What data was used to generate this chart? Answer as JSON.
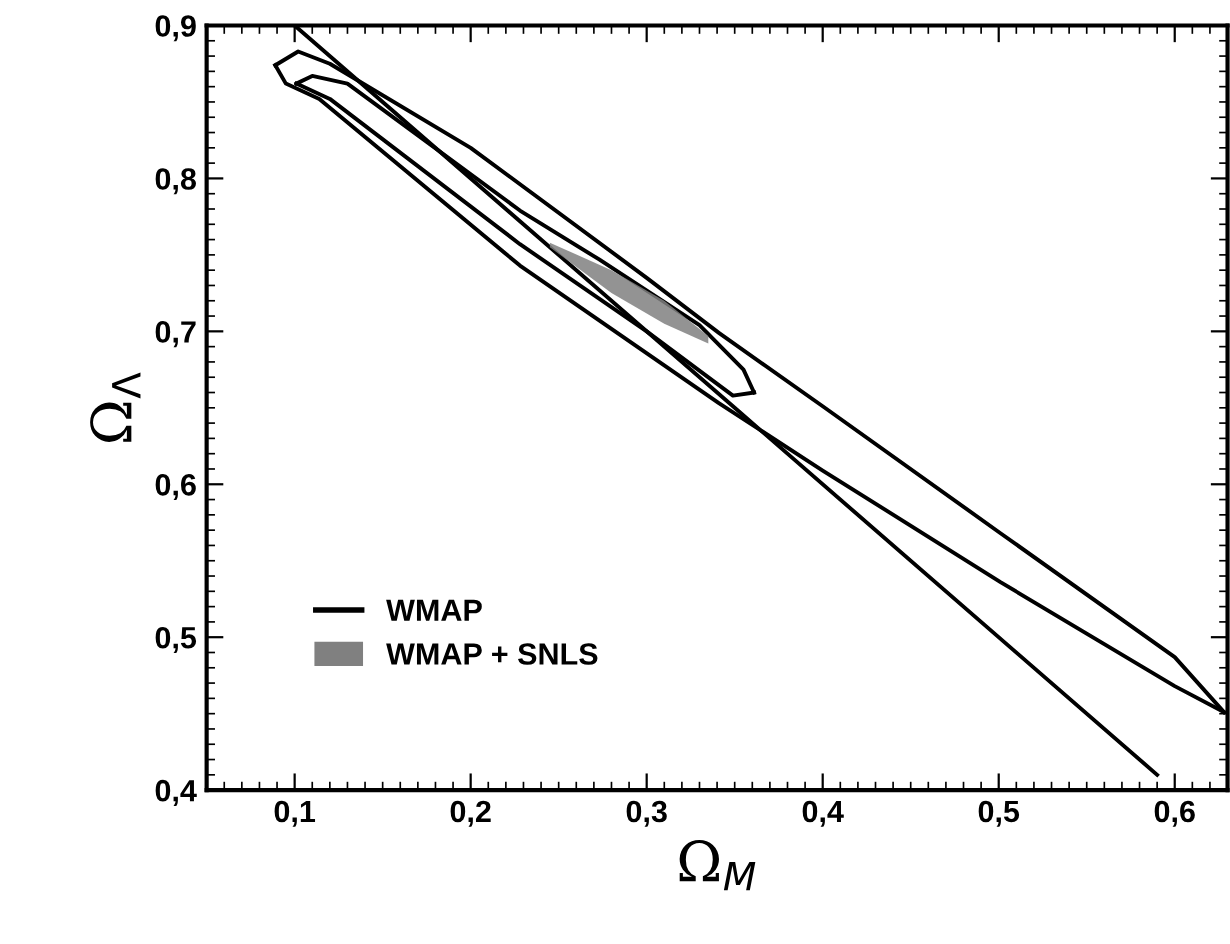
{
  "chart_data": {
    "type": "line",
    "xlabel": "Ω$_{M}$",
    "ylabel": "Ω$_{Λ}$",
    "xlim": [
      0.05,
      0.63
    ],
    "ylim": [
      0.4,
      0.9
    ],
    "xticks": [
      {
        "value": 0.1,
        "label": "0,1"
      },
      {
        "value": 0.2,
        "label": "0,2"
      },
      {
        "value": 0.3,
        "label": "0,3"
      },
      {
        "value": 0.4,
        "label": "0,4"
      },
      {
        "value": 0.5,
        "label": "0,5"
      },
      {
        "value": 0.6,
        "label": "0,6"
      }
    ],
    "yticks": [
      {
        "value": 0.4,
        "label": "0,4"
      },
      {
        "value": 0.5,
        "label": "0,5"
      },
      {
        "value": 0.6,
        "label": "0,6"
      },
      {
        "value": 0.7,
        "label": "0,7"
      },
      {
        "value": 0.8,
        "label": "0,8"
      },
      {
        "value": 0.9,
        "label": "0,9"
      }
    ],
    "grid": false,
    "legend": "bottom left",
    "marker": "none",
    "line_style": "solid",
    "series": [
      {
        "name": "WMAP",
        "color": "#000000",
        "x": [
          0.089,
          0.102,
          0.12,
          0.2,
          0.3,
          0.341,
          0.4,
          0.501,
          0.6,
          0.628
        ],
        "values": [
          0.874,
          0.883,
          0.875,
          0.82,
          0.735,
          0.699,
          0.651,
          0.568,
          0.487,
          0.451
        ]
      },
      {
        "color": "#000000",
        "x": [
          0.089,
          0.095,
          0.114,
          0.228,
          0.341,
          0.4,
          0.501,
          0.6,
          0.628
        ],
        "values": [
          0.874,
          0.862,
          0.852,
          0.743,
          0.653,
          0.609,
          0.536,
          0.468,
          0.451
        ]
      },
      {
        "color": "#000000",
        "x": [
          0.101,
          0.11,
          0.13,
          0.228,
          0.273,
          0.33,
          0.355,
          0.361
        ],
        "values": [
          0.862,
          0.867,
          0.862,
          0.779,
          0.747,
          0.704,
          0.675,
          0.66
        ]
      },
      {
        "color": "#000000",
        "x": [
          0.101,
          0.12,
          0.228,
          0.3,
          0.349,
          0.361
        ],
        "values": [
          0.862,
          0.852,
          0.757,
          0.7,
          0.658,
          0.66
        ]
      },
      {
        "color": "#000000",
        "x": [
          0.1,
          0.35,
          0.59
        ],
        "values": [
          0.9,
          0.65,
          0.41
        ]
      },
      {
        "name": "WMAP + SNLS",
        "color": "#808080",
        "x": [
          0.245,
          0.28,
          0.31,
          0.335
        ],
        "values": [
          null,
          null,
          null,
          null
        ],
        "upper": [
          0.758,
          0.74,
          0.72,
          0.697
        ],
        "lower": [
          0.755,
          0.725,
          0.705,
          0.692
        ]
      }
    ]
  }
}
